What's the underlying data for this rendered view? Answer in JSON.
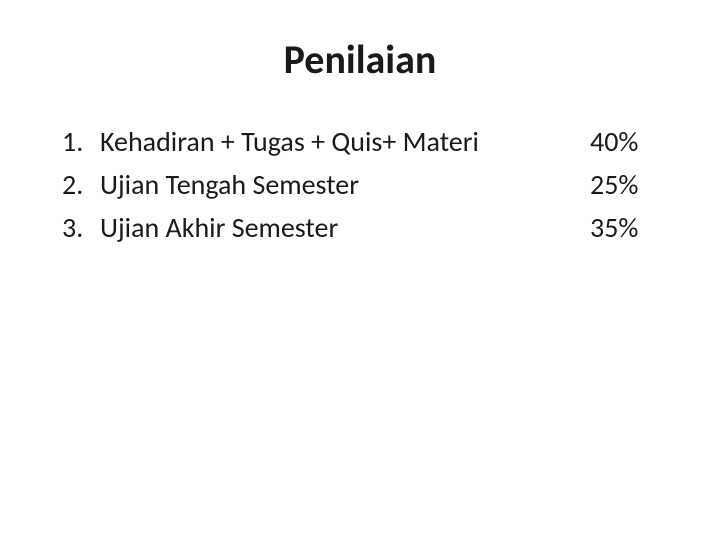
{
  "title": "Penilaian",
  "title_fontsize": 40,
  "body_fontsize": 28,
  "text_color": "#1a1a1a",
  "background_color": "#ffffff",
  "font_family": "Calibri",
  "items": [
    {
      "number": "1.",
      "label": "Kehadiran + Tugas + Quis+ Materi",
      "percent": "40%"
    },
    {
      "number": "2.",
      "label": "Ujian Tengah Semester",
      "percent": "25%"
    },
    {
      "number": "3.",
      "label": "Ujian Akhir Semester",
      "percent": "35%"
    }
  ]
}
